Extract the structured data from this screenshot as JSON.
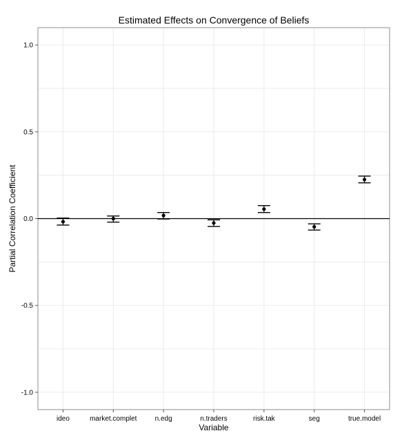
{
  "chart_data": {
    "type": "scatter",
    "title": "Estimated Effects on Convergence of Beliefs",
    "xlabel": "Variable",
    "ylabel": "Partial Correlation Coefficient",
    "ylim": [
      -1.1,
      1.1
    ],
    "y_ticks": [
      1.0,
      0.5,
      0.0,
      -0.5,
      -1.0
    ],
    "y_tick_labels": [
      "1.0",
      "0.5",
      "0.0",
      "-0.5",
      "-1.0"
    ],
    "categories": [
      "ideo",
      "market.complet",
      "n.edg",
      "n.traders",
      "risk.tak",
      "seg",
      "true.model"
    ],
    "values": [
      -0.018,
      0.0,
      0.018,
      -0.025,
      0.055,
      -0.047,
      0.225
    ],
    "error_low": [
      -0.037,
      -0.02,
      -0.002,
      -0.045,
      0.035,
      -0.066,
      0.206
    ],
    "error_high": [
      0.003,
      0.015,
      0.035,
      -0.007,
      0.075,
      -0.03,
      0.245
    ],
    "reference_line_y": 0.0,
    "grid": true,
    "colors": {
      "panel_border": "#8c8c8c",
      "grid": "#ebebeb",
      "marks": "#000000",
      "reference_line": "#000000"
    }
  }
}
